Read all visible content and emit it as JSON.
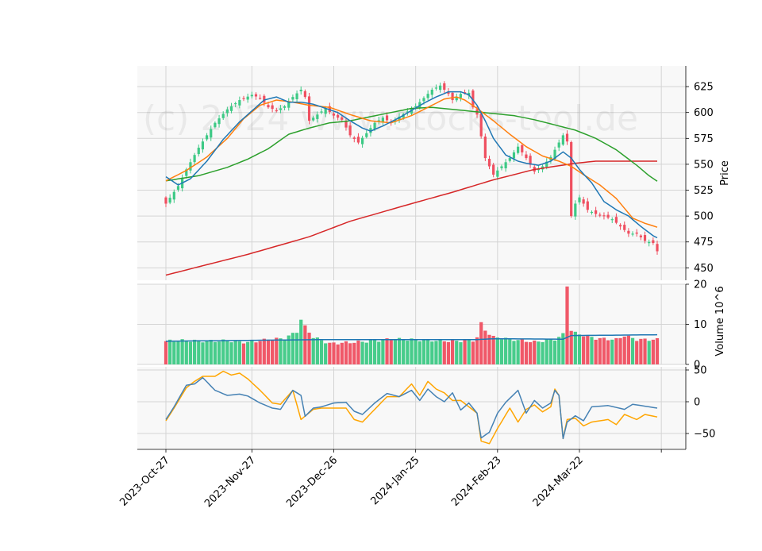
{
  "watermark": "(c) 2024 www.stocks-tool.de",
  "colors": {
    "background": "#ffffff",
    "panel_background": "#f8f8f8",
    "grid": "#d4d4d4",
    "up": "#3dc985",
    "down": "#ef4f60",
    "sma10": "#1f77b4",
    "sma20": "#ff7f0e",
    "sma50": "#2ca02c",
    "sma200": "#d62728",
    "volume_ma": "#1f77b4",
    "osc1": "#4682b4",
    "osc2": "#ffa500"
  },
  "chart_data": {
    "type": "candlestick",
    "price_axis": {
      "label": "Price",
      "ylim": [
        438,
        645
      ],
      "ticks": [
        450,
        475,
        500,
        525,
        550,
        575,
        600,
        625
      ]
    },
    "volume_axis": {
      "label": "Volume  10^6",
      "ylim": [
        0,
        20
      ],
      "ticks": [
        0,
        10,
        20
      ],
      "tick_labels": [
        "0",
        "10",
        "20"
      ]
    },
    "oscillator_axis": {
      "ylim": [
        -75,
        55
      ],
      "ticks": [
        -50,
        0,
        50
      ],
      "tick_labels": [
        "−50",
        "0",
        "50"
      ]
    },
    "x_ticks": [
      {
        "index": 0,
        "label": "2023-Oct-27"
      },
      {
        "index": 21,
        "label": "2023-Nov-27"
      },
      {
        "index": 41,
        "label": "2023-Dec-26"
      },
      {
        "index": 61,
        "label": "2024-Jan-25"
      },
      {
        "index": 81,
        "label": "2024-Feb-23"
      },
      {
        "index": 101,
        "label": "2024-Mar-22"
      },
      {
        "index": 121,
        "label": ""
      }
    ],
    "n_bars": 121,
    "close_keypoints": [
      [
        0,
        512
      ],
      [
        3,
        529
      ],
      [
        5,
        545
      ],
      [
        8,
        566
      ],
      [
        12,
        590
      ],
      [
        15,
        603
      ],
      [
        18,
        612
      ],
      [
        21,
        617
      ],
      [
        23,
        614
      ],
      [
        25,
        605
      ],
      [
        27,
        602
      ],
      [
        29,
        606
      ],
      [
        31,
        615
      ],
      [
        33,
        622
      ],
      [
        34,
        615
      ],
      [
        35,
        592
      ],
      [
        37,
        598
      ],
      [
        39,
        604
      ],
      [
        41,
        597
      ],
      [
        43,
        593
      ],
      [
        45,
        578
      ],
      [
        47,
        571
      ],
      [
        49,
        580
      ],
      [
        51,
        590
      ],
      [
        53,
        595
      ],
      [
        55,
        590
      ],
      [
        57,
        596
      ],
      [
        59,
        601
      ],
      [
        61,
        606
      ],
      [
        63,
        614
      ],
      [
        65,
        622
      ],
      [
        67,
        626
      ],
      [
        69,
        618
      ],
      [
        70,
        612
      ],
      [
        72,
        618
      ],
      [
        74,
        619
      ],
      [
        75,
        605
      ],
      [
        76,
        598
      ],
      [
        78,
        556
      ],
      [
        80,
        540
      ],
      [
        82,
        548
      ],
      [
        84,
        556
      ],
      [
        86,
        567
      ],
      [
        88,
        556
      ],
      [
        90,
        543
      ],
      [
        92,
        548
      ],
      [
        94,
        557
      ],
      [
        96,
        571
      ],
      [
        97,
        578
      ],
      [
        98,
        572
      ],
      [
        99,
        500
      ],
      [
        100,
        512
      ],
      [
        101,
        518
      ],
      [
        103,
        506
      ],
      [
        105,
        502
      ],
      [
        107,
        500
      ],
      [
        109,
        497
      ],
      [
        111,
        490
      ],
      [
        113,
        483
      ],
      [
        115,
        483
      ],
      [
        117,
        476
      ],
      [
        119,
        474
      ],
      [
        120,
        466
      ]
    ],
    "volume_keypoints": [
      [
        0,
        5.8
      ],
      [
        5,
        6.0
      ],
      [
        10,
        5.8
      ],
      [
        15,
        5.9
      ],
      [
        20,
        5.5
      ],
      [
        25,
        6.2
      ],
      [
        29,
        6.5
      ],
      [
        32,
        8.2
      ],
      [
        33,
        11.2
      ],
      [
        34,
        9.4
      ],
      [
        36,
        6.8
      ],
      [
        40,
        5.2
      ],
      [
        45,
        5.5
      ],
      [
        50,
        5.8
      ],
      [
        55,
        6.3
      ],
      [
        60,
        6.2
      ],
      [
        65,
        6.0
      ],
      [
        70,
        5.8
      ],
      [
        75,
        6.0
      ],
      [
        76,
        6.8
      ],
      [
        77,
        10.2
      ],
      [
        78,
        8.6
      ],
      [
        79,
        7.6
      ],
      [
        80,
        6.8
      ],
      [
        85,
        6.2
      ],
      [
        90,
        5.6
      ],
      [
        95,
        6.3
      ],
      [
        96,
        6.8
      ],
      [
        97,
        7.5
      ],
      [
        98,
        19.7
      ],
      [
        99,
        8.5
      ],
      [
        100,
        7.8
      ],
      [
        105,
        6.5
      ],
      [
        110,
        6.2
      ],
      [
        112,
        7.2
      ],
      [
        115,
        6.2
      ],
      [
        120,
        6.2
      ]
    ],
    "volume_ma_keypoints": [
      [
        0,
        5.8
      ],
      [
        20,
        6.0
      ],
      [
        40,
        6.2
      ],
      [
        60,
        6.2
      ],
      [
        76,
        6.2
      ],
      [
        80,
        6.4
      ],
      [
        97,
        6.3
      ],
      [
        99,
        7.2
      ],
      [
        120,
        7.4
      ]
    ],
    "sma10_keypoints": [
      [
        0,
        538
      ],
      [
        3,
        530
      ],
      [
        6,
        536
      ],
      [
        10,
        553
      ],
      [
        14,
        574
      ],
      [
        18,
        591
      ],
      [
        22,
        605
      ],
      [
        24,
        612
      ],
      [
        27,
        615
      ],
      [
        30,
        610
      ],
      [
        33,
        610
      ],
      [
        36,
        608
      ],
      [
        39,
        604
      ],
      [
        42,
        600
      ],
      [
        45,
        592
      ],
      [
        48,
        585
      ],
      [
        50,
        582
      ],
      [
        53,
        587
      ],
      [
        57,
        595
      ],
      [
        60,
        602
      ],
      [
        63,
        609
      ],
      [
        66,
        615
      ],
      [
        69,
        620
      ],
      [
        72,
        620
      ],
      [
        74,
        617
      ],
      [
        76,
        607
      ],
      [
        78,
        592
      ],
      [
        80,
        575
      ],
      [
        83,
        559
      ],
      [
        86,
        553
      ],
      [
        88,
        551
      ],
      [
        91,
        549
      ],
      [
        94,
        553
      ],
      [
        97,
        562
      ],
      [
        99,
        556
      ],
      [
        101,
        545
      ],
      [
        104,
        532
      ],
      [
        107,
        514
      ],
      [
        110,
        506
      ],
      [
        113,
        500
      ],
      [
        116,
        490
      ],
      [
        119,
        481
      ],
      [
        121,
        477
      ]
    ],
    "sma20_keypoints": [
      [
        0,
        534
      ],
      [
        5,
        544
      ],
      [
        10,
        557
      ],
      [
        15,
        575
      ],
      [
        19,
        594
      ],
      [
        23,
        607
      ],
      [
        27,
        612
      ],
      [
        31,
        610
      ],
      [
        35,
        607
      ],
      [
        40,
        605
      ],
      [
        45,
        598
      ],
      [
        50,
        592
      ],
      [
        55,
        590
      ],
      [
        60,
        597
      ],
      [
        64,
        605
      ],
      [
        68,
        613
      ],
      [
        71,
        615
      ],
      [
        73,
        612
      ],
      [
        76,
        604
      ],
      [
        80,
        592
      ],
      [
        84,
        579
      ],
      [
        88,
        567
      ],
      [
        92,
        558
      ],
      [
        96,
        553
      ],
      [
        99,
        548
      ],
      [
        102,
        540
      ],
      [
        106,
        530
      ],
      [
        110,
        517
      ],
      [
        114,
        498
      ],
      [
        117,
        493
      ],
      [
        121,
        488
      ]
    ],
    "sma50_keypoints": [
      [
        0,
        534
      ],
      [
        8,
        539
      ],
      [
        15,
        547
      ],
      [
        20,
        555
      ],
      [
        25,
        565
      ],
      [
        30,
        579
      ],
      [
        35,
        585
      ],
      [
        40,
        590
      ],
      [
        45,
        592
      ],
      [
        50,
        596
      ],
      [
        55,
        600
      ],
      [
        60,
        604
      ],
      [
        65,
        605
      ],
      [
        70,
        603
      ],
      [
        75,
        601
      ],
      [
        80,
        599
      ],
      [
        85,
        597
      ],
      [
        90,
        593
      ],
      [
        95,
        588
      ],
      [
        100,
        583
      ],
      [
        105,
        575
      ],
      [
        110,
        564
      ],
      [
        115,
        549
      ],
      [
        118,
        539
      ],
      [
        121,
        531
      ]
    ],
    "sma200_keypoints": [
      [
        0,
        443
      ],
      [
        20,
        463
      ],
      [
        35,
        480
      ],
      [
        45,
        495
      ],
      [
        60,
        512
      ],
      [
        70,
        523
      ],
      [
        80,
        535
      ],
      [
        90,
        545
      ],
      [
        100,
        551
      ],
      [
        105,
        553
      ],
      [
        121,
        553
      ]
    ],
    "osc1_keypoints": [
      [
        0,
        -28
      ],
      [
        2,
        -8
      ],
      [
        5,
        26
      ],
      [
        7,
        28
      ],
      [
        9,
        38
      ],
      [
        12,
        18
      ],
      [
        15,
        10
      ],
      [
        18,
        12
      ],
      [
        20,
        9
      ],
      [
        23,
        -2
      ],
      [
        26,
        -10
      ],
      [
        28,
        -12
      ],
      [
        31,
        18
      ],
      [
        33,
        10
      ],
      [
        34,
        -23
      ],
      [
        36,
        -10
      ],
      [
        38,
        -8
      ],
      [
        41,
        -2
      ],
      [
        44,
        -1
      ],
      [
        46,
        -15
      ],
      [
        48,
        -20
      ],
      [
        51,
        -2
      ],
      [
        54,
        13
      ],
      [
        57,
        8
      ],
      [
        60,
        18
      ],
      [
        62,
        2
      ],
      [
        64,
        20
      ],
      [
        66,
        8
      ],
      [
        68,
        0
      ],
      [
        70,
        14
      ],
      [
        72,
        -13
      ],
      [
        74,
        -2
      ],
      [
        76,
        -18
      ],
      [
        77,
        -57
      ],
      [
        79,
        -48
      ],
      [
        81,
        -18
      ],
      [
        83,
        -1
      ],
      [
        86,
        18
      ],
      [
        88,
        -18
      ],
      [
        90,
        2
      ],
      [
        92,
        -10
      ],
      [
        94,
        -2
      ],
      [
        95,
        18
      ],
      [
        96,
        10
      ],
      [
        97,
        -58
      ],
      [
        98,
        -32
      ],
      [
        100,
        -22
      ],
      [
        102,
        -30
      ],
      [
        104,
        -8
      ],
      [
        108,
        -6
      ],
      [
        112,
        -12
      ],
      [
        114,
        -4
      ],
      [
        118,
        -8
      ],
      [
        120,
        -10
      ]
    ],
    "osc2_keypoints": [
      [
        0,
        -30
      ],
      [
        2,
        -10
      ],
      [
        5,
        22
      ],
      [
        7,
        32
      ],
      [
        9,
        40
      ],
      [
        12,
        40
      ],
      [
        14,
        48
      ],
      [
        16,
        42
      ],
      [
        18,
        45
      ],
      [
        20,
        36
      ],
      [
        23,
        18
      ],
      [
        26,
        -2
      ],
      [
        28,
        -4
      ],
      [
        31,
        18
      ],
      [
        33,
        -28
      ],
      [
        36,
        -12
      ],
      [
        38,
        -10
      ],
      [
        41,
        -10
      ],
      [
        44,
        -10
      ],
      [
        46,
        -28
      ],
      [
        48,
        -32
      ],
      [
        51,
        -12
      ],
      [
        54,
        8
      ],
      [
        57,
        8
      ],
      [
        60,
        28
      ],
      [
        62,
        10
      ],
      [
        64,
        32
      ],
      [
        66,
        20
      ],
      [
        68,
        14
      ],
      [
        70,
        2
      ],
      [
        72,
        2
      ],
      [
        74,
        -8
      ],
      [
        76,
        -18
      ],
      [
        77,
        -62
      ],
      [
        79,
        -66
      ],
      [
        81,
        -42
      ],
      [
        84,
        -10
      ],
      [
        86,
        -32
      ],
      [
        88,
        -12
      ],
      [
        90,
        -5
      ],
      [
        92,
        -16
      ],
      [
        94,
        -8
      ],
      [
        95,
        20
      ],
      [
        96,
        10
      ],
      [
        97,
        -58
      ],
      [
        98,
        -28
      ],
      [
        100,
        -26
      ],
      [
        102,
        -38
      ],
      [
        104,
        -32
      ],
      [
        108,
        -28
      ],
      [
        110,
        -36
      ],
      [
        112,
        -20
      ],
      [
        115,
        -28
      ],
      [
        117,
        -20
      ],
      [
        120,
        -24
      ]
    ]
  }
}
